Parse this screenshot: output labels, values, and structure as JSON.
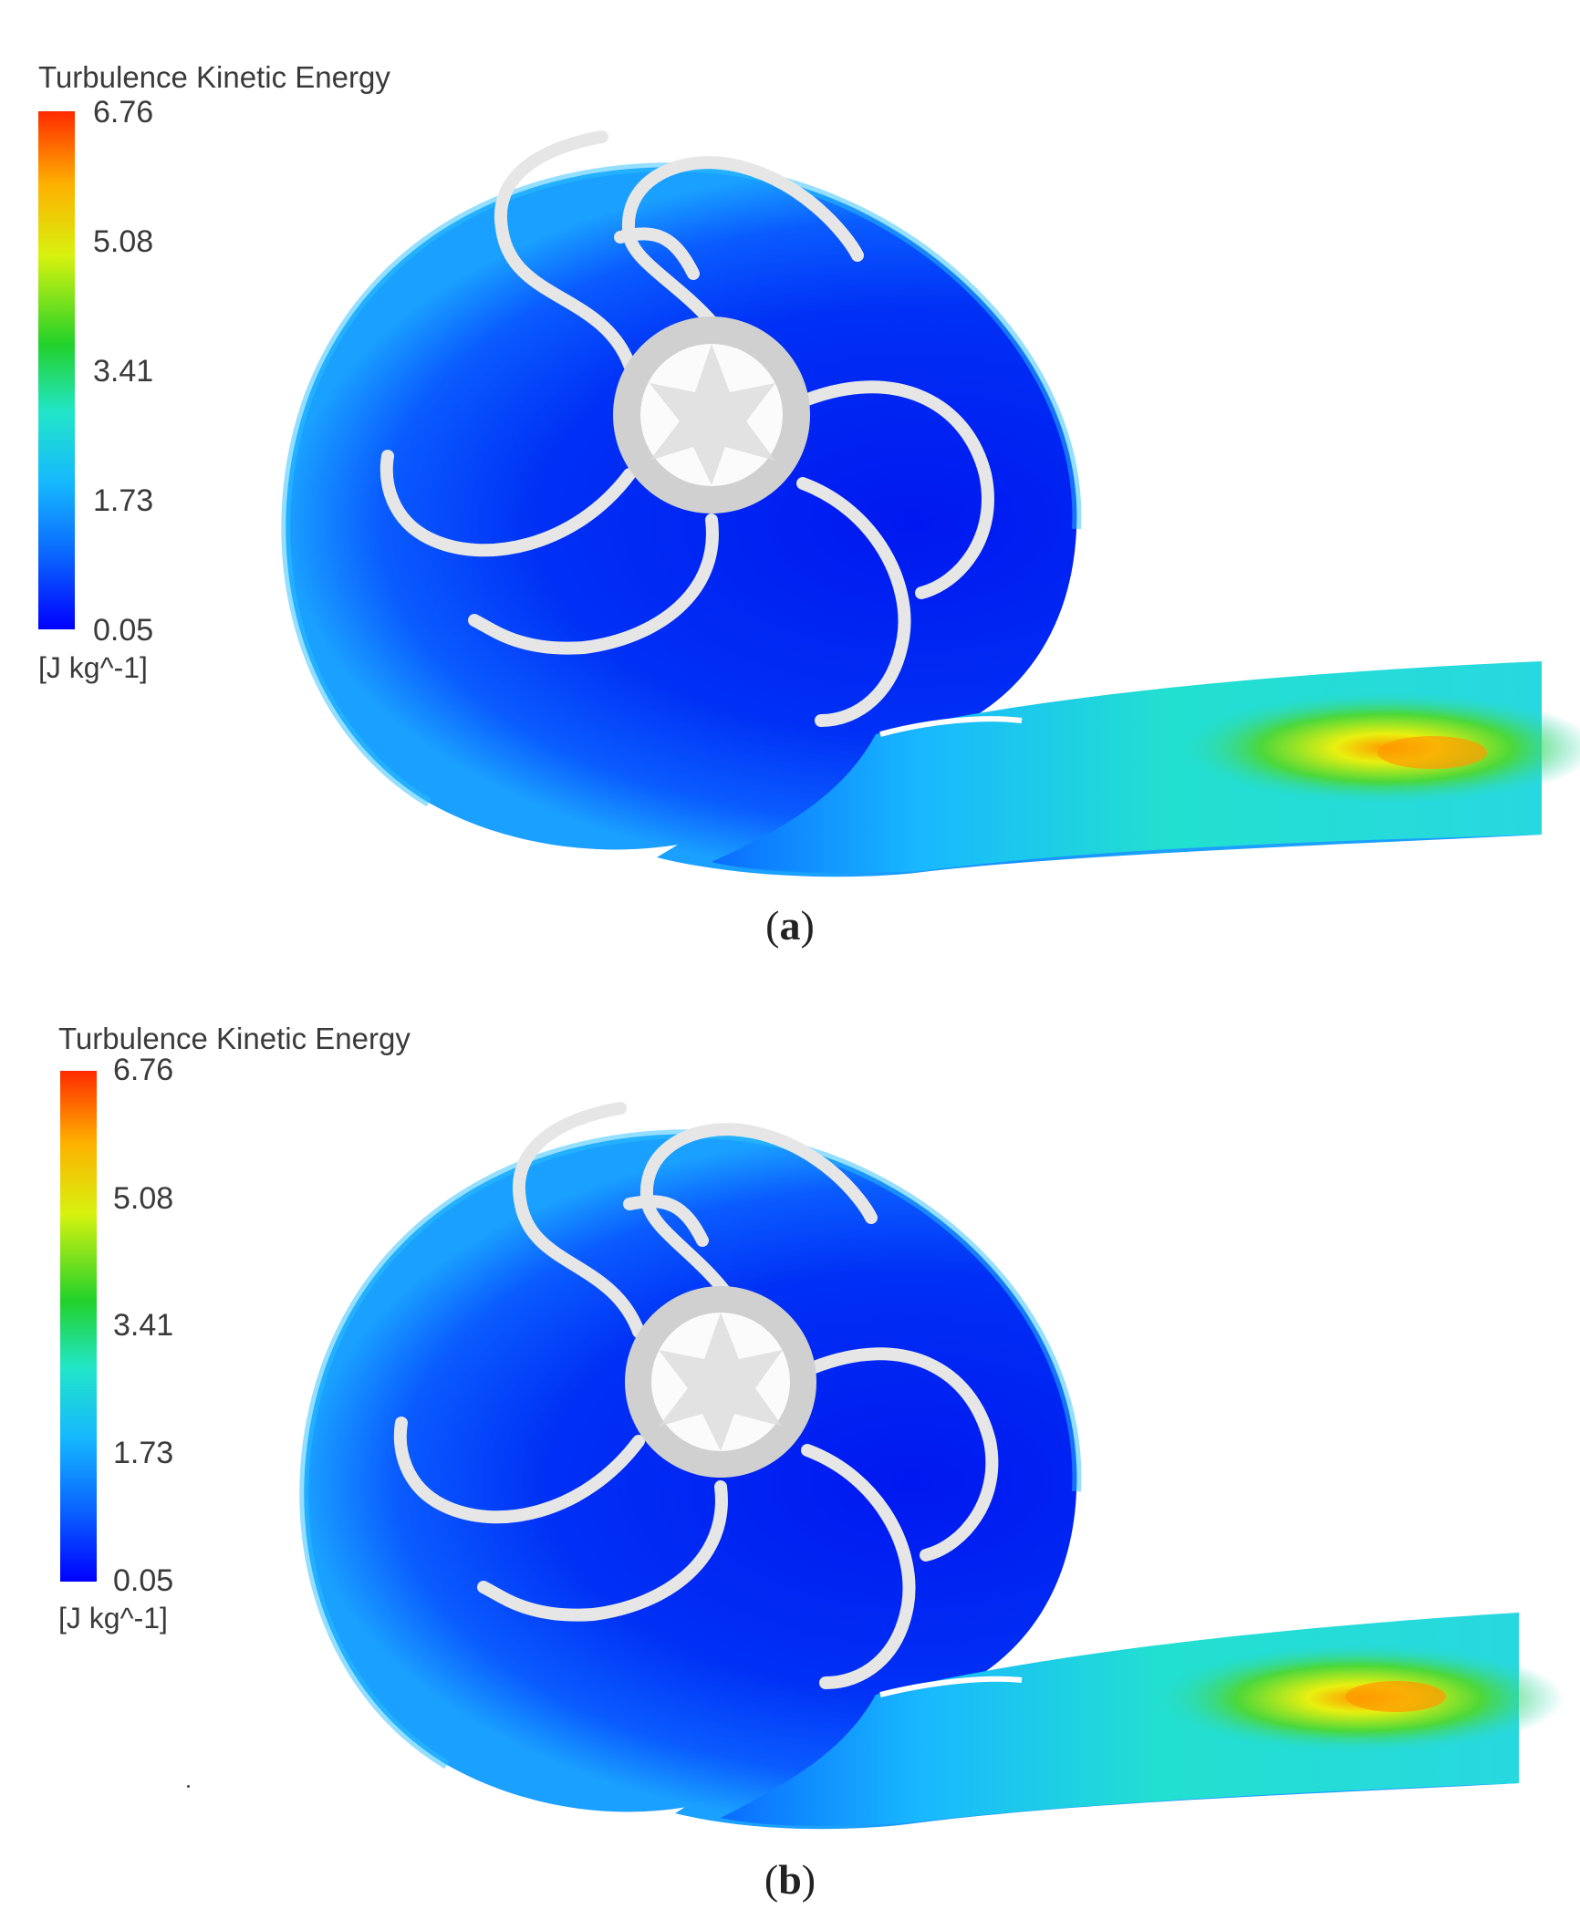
{
  "panels": [
    {
      "legend": {
        "title": "Turbulence Kinetic Energy",
        "ticks": [
          "6.76",
          "5.08",
          "3.41",
          "1.73",
          "0.05"
        ],
        "units": "[J kg^-1]"
      },
      "caption": {
        "open": "(",
        "letter": "a",
        "close": ")"
      },
      "outlet_hotspot_level": 0.78
    },
    {
      "legend": {
        "title": "Turbulence Kinetic Energy",
        "ticks": [
          "6.76",
          "5.08",
          "3.41",
          "1.73",
          "0.05"
        ],
        "units": "[J kg^-1]"
      },
      "caption": {
        "open": "(",
        "letter": "b",
        "close": ")"
      },
      "outlet_hotspot_level": 0.82
    }
  ],
  "colormap": [
    "#0000ff",
    "#0a63ff",
    "#15b7ff",
    "#22e6c8",
    "#22d12a",
    "#d7f20f",
    "#ffb000",
    "#ff2a00"
  ],
  "blade_color": "#e6e6e6",
  "hub_color": "#d0d0d0"
}
